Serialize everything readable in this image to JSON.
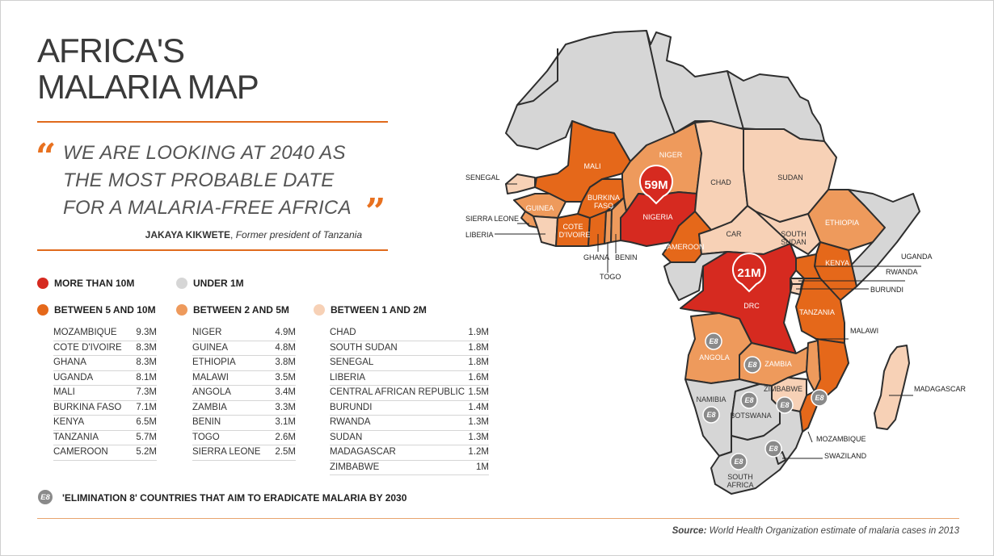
{
  "title": [
    "AFRICA'S",
    "MALARIA MAP"
  ],
  "quote": {
    "lines": [
      "WE ARE LOOKING AT 2040 AS",
      "THE MOST PROBABLE DATE",
      "FOR A MALARIA-FREE AFRICA"
    ],
    "author": "JAKAYA KIKWETE",
    "author_role": "Former president of Tanzania"
  },
  "colors": {
    "more_than_10m": "#d62a20",
    "between_5_10m": "#e5681a",
    "between_2_5m": "#ee9a5c",
    "between_1_2m": "#f7d1b6",
    "under_1m": "#d6d6d6",
    "e8_badge": "#8a8a8a",
    "accent_rule": "#e06a1c"
  },
  "legend": {
    "more_than_10m": "MORE THAN 10M",
    "under_1m": "UNDER 1M",
    "between_5_10m": "BETWEEN 5 AND 10M",
    "between_2_5m": "BETWEEN 2 AND 5M",
    "between_1_2m": "BETWEEN 1 AND 2M"
  },
  "tables": {
    "between_5_10m": [
      {
        "country": "MOZAMBIQUE",
        "value": "9.3M"
      },
      {
        "country": "COTE D'IVOIRE",
        "value": "8.3M"
      },
      {
        "country": "GHANA",
        "value": "8.3M"
      },
      {
        "country": "UGANDA",
        "value": "8.1M"
      },
      {
        "country": "MALI",
        "value": "7.3M"
      },
      {
        "country": "BURKINA FASO",
        "value": "7.1M"
      },
      {
        "country": "KENYA",
        "value": "6.5M"
      },
      {
        "country": "TANZANIA",
        "value": "5.7M"
      },
      {
        "country": "CAMEROON",
        "value": "5.2M"
      }
    ],
    "between_2_5m": [
      {
        "country": "NIGER",
        "value": "4.9M"
      },
      {
        "country": "GUINEA",
        "value": "4.8M"
      },
      {
        "country": "ETHIOPIA",
        "value": "3.8M"
      },
      {
        "country": "MALAWI",
        "value": "3.5M"
      },
      {
        "country": "ANGOLA",
        "value": "3.4M"
      },
      {
        "country": "ZAMBIA",
        "value": "3.3M"
      },
      {
        "country": "BENIN",
        "value": "3.1M"
      },
      {
        "country": "TOGO",
        "value": "2.6M"
      },
      {
        "country": "SIERRA LEONE",
        "value": "2.5M"
      }
    ],
    "between_1_2m": [
      {
        "country": "CHAD",
        "value": "1.9M"
      },
      {
        "country": "SOUTH SUDAN",
        "value": "1.8M"
      },
      {
        "country": "SENEGAL",
        "value": "1.8M"
      },
      {
        "country": "LIBERIA",
        "value": "1.6M"
      },
      {
        "country": "CENTRAL AFRICAN REPUBLIC",
        "value": "1.5M"
      },
      {
        "country": "BURUNDI",
        "value": "1.4M"
      },
      {
        "country": "RWANDA",
        "value": "1.3M"
      },
      {
        "country": "SUDAN",
        "value": "1.3M"
      },
      {
        "country": "MADAGASCAR",
        "value": "1.2M"
      },
      {
        "country": "ZIMBABWE",
        "value": "1M"
      }
    ]
  },
  "e8": {
    "badge": "E8",
    "text": "'ELIMINATION 8' COUNTRIES THAT AIM TO ERADICATE MALARIA BY 2030"
  },
  "source": {
    "label": "Source:",
    "text": "World Health Organization estimate of malaria cases in 2013"
  },
  "map": {
    "pins": [
      {
        "country": "NIGERIA",
        "value": "59M"
      },
      {
        "country": "DRC",
        "value": "21M"
      }
    ],
    "country_labels": {
      "mali": "MALI",
      "niger": "NIGER",
      "chad": "CHAD",
      "sudan": "SUDAN",
      "guinea": "GUINEA",
      "burkina_faso": [
        "BURKINA",
        "FASO"
      ],
      "cote_divoire": [
        "COTE",
        "D'IVOIRE"
      ],
      "nigeria": "NIGERIA",
      "cameroon": "CAMEROON",
      "car": "CAR",
      "south_sudan": [
        "SOUTH",
        "SUDAN"
      ],
      "ethiopia": "ETHIOPIA",
      "kenya": "KENYA",
      "drc": "DRC",
      "tanzania": "TANZANIA",
      "angola": "ANGOLA",
      "zambia": "ZAMBIA",
      "namibia": "NAMIBIA",
      "botswana": "BOTSWANA",
      "zimbabwe": "ZIMBABWE",
      "south_africa": [
        "SOUTH",
        "AFRICA"
      ]
    },
    "callouts": {
      "senegal": "SENEGAL",
      "sierra_leone": "SIERRA LEONE",
      "liberia": "LIBERIA",
      "ghana": "GHANA",
      "benin": "BENIN",
      "togo": "TOGO",
      "uganda": "UGANDA",
      "rwanda": "RWANDA",
      "burundi": "BURUNDI",
      "malawi": "MALAWI",
      "madagascar": "MADAGASCAR",
      "mozambique": "MOZAMBIQUE",
      "swaziland": "SWAZILAND"
    }
  }
}
